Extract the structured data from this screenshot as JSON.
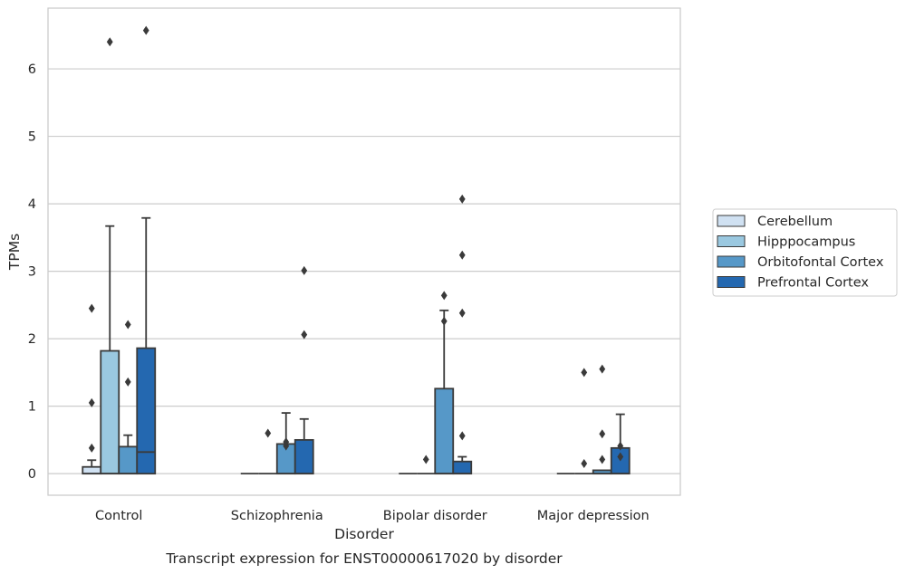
{
  "chart_data": {
    "type": "boxplot",
    "title": "Transcript expression for ENST00000617020 by disorder",
    "xlabel": "Disorder",
    "ylabel": "TPMs",
    "categories": [
      "Control",
      "Schizophrenia",
      "Bipolar disorder",
      "Major depression"
    ],
    "yticks": [
      0,
      1,
      2,
      3,
      4,
      5,
      6
    ],
    "ylim": [
      -0.32,
      6.9
    ],
    "grid": "horizontal",
    "legend_position": "right",
    "series": [
      {
        "name": "Cerebellum",
        "color": "#d0e1f2",
        "boxes": [
          {
            "min": 0,
            "q1": 0,
            "median": 0,
            "q3": 0.1,
            "max": 0.2,
            "outliers": [
              0.38,
              1.05,
              2.45
            ]
          },
          {
            "min": 0,
            "q1": 0,
            "median": 0,
            "q3": 0,
            "max": 0,
            "outliers": []
          },
          {
            "min": 0,
            "q1": 0,
            "median": 0,
            "q3": 0,
            "max": 0,
            "outliers": []
          },
          {
            "min": 0,
            "q1": 0,
            "median": 0,
            "q3": 0,
            "max": 0,
            "outliers": []
          }
        ]
      },
      {
        "name": "Hipppocampus",
        "color": "#9ac8e0",
        "boxes": [
          {
            "min": 0,
            "q1": 0,
            "median": 0,
            "q3": 1.82,
            "max": 3.67,
            "outliers": [
              6.4
            ]
          },
          {
            "min": 0,
            "q1": 0,
            "median": 0,
            "q3": 0,
            "max": 0,
            "outliers": [
              0.6
            ]
          },
          {
            "min": 0,
            "q1": 0,
            "median": 0,
            "q3": 0,
            "max": 0,
            "outliers": [
              0.21
            ]
          },
          {
            "min": 0,
            "q1": 0,
            "median": 0,
            "q3": 0,
            "max": 0,
            "outliers": [
              0.15,
              1.5
            ]
          }
        ]
      },
      {
        "name": "Orbitofontal Cortex",
        "color": "#5698c8",
        "boxes": [
          {
            "min": 0,
            "q1": 0,
            "median": 0,
            "q3": 0.4,
            "max": 0.57,
            "outliers": [
              1.36,
              2.21
            ]
          },
          {
            "min": 0,
            "q1": 0,
            "median": 0,
            "q3": 0.44,
            "max": 0.9,
            "outliers": [
              0.41,
              0.47
            ]
          },
          {
            "min": 0,
            "q1": 0,
            "median": 0,
            "q3": 1.26,
            "max": 2.42,
            "outliers": [
              2.26,
              2.64
            ]
          },
          {
            "min": 0,
            "q1": 0,
            "median": 0,
            "q3": 0.05,
            "max": 0.05,
            "outliers": [
              0.21,
              0.59,
              1.55
            ]
          }
        ]
      },
      {
        "name": "Prefrontal Cortex",
        "color": "#2468b0",
        "boxes": [
          {
            "min": 0,
            "q1": 0,
            "median": 0.32,
            "q3": 1.86,
            "max": 3.79,
            "outliers": [
              6.57
            ]
          },
          {
            "min": 0,
            "q1": 0,
            "median": 0,
            "q3": 0.5,
            "max": 0.81,
            "outliers": [
              2.06,
              3.01
            ]
          },
          {
            "min": 0,
            "q1": 0,
            "median": 0,
            "q3": 0.18,
            "max": 0.25,
            "outliers": [
              0.56,
              2.38,
              3.24,
              4.07
            ]
          },
          {
            "min": 0,
            "q1": 0,
            "median": 0,
            "q3": 0.38,
            "max": 0.88,
            "outliers": [
              0.25,
              0.41
            ]
          }
        ]
      }
    ]
  }
}
